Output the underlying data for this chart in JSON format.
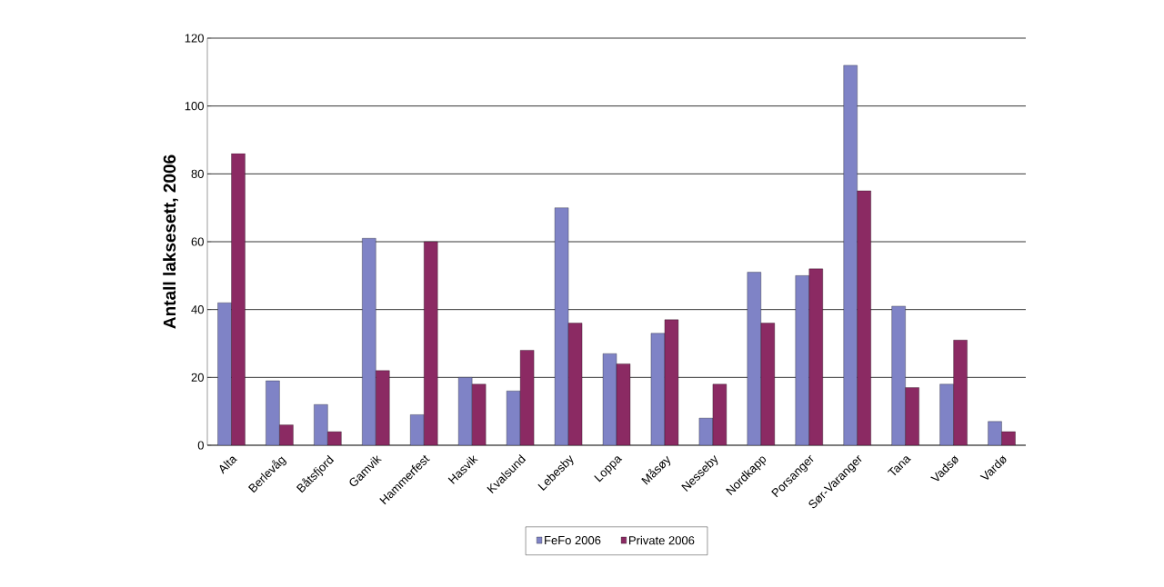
{
  "chart_data": {
    "type": "bar",
    "ylabel": "Antall laksesett, 2006",
    "categories": [
      "Alta",
      "Berlevåg",
      "Båtsfjord",
      "Gamvik",
      "Hammerfest",
      "Hasvik",
      "Kvalsund",
      "Lebesby",
      "Loppa",
      "Måsøy",
      "Nesseby",
      "Nordkapp",
      "Porsanger",
      "Sør-Varanger",
      "Tana",
      "Vadsø",
      "Vardø"
    ],
    "series": [
      {
        "name": "FeFo 2006",
        "color": "#7f83c6",
        "values": [
          42,
          19,
          12,
          61,
          9,
          20,
          16,
          70,
          27,
          33,
          8,
          51,
          50,
          112,
          41,
          18,
          7
        ]
      },
      {
        "name": "Private 2006",
        "color": "#8b2a63",
        "values": [
          86,
          6,
          4,
          22,
          60,
          18,
          28,
          36,
          24,
          37,
          18,
          36,
          52,
          75,
          17,
          31,
          4
        ]
      }
    ],
    "ylim": [
      0,
      120
    ],
    "yticks": [
      0,
      20,
      40,
      60,
      80,
      100,
      120
    ],
    "grid": "y",
    "legend": "bottom"
  }
}
